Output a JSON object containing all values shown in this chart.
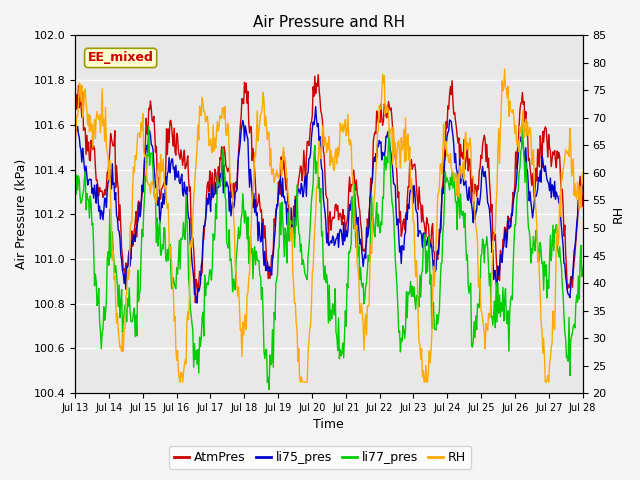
{
  "title": "Air Pressure and RH",
  "xlabel": "Time",
  "ylabel_left": "Air Pressure (kPa)",
  "ylabel_right": "RH",
  "annotation": "EE_mixed",
  "ylim_left": [
    100.4,
    102.0
  ],
  "ylim_right": [
    20,
    85
  ],
  "yticks_left": [
    100.4,
    100.6,
    100.8,
    101.0,
    101.2,
    101.4,
    101.6,
    101.8,
    102.0
  ],
  "yticks_right": [
    20,
    25,
    30,
    35,
    40,
    45,
    50,
    55,
    60,
    65,
    70,
    75,
    80,
    85
  ],
  "xtick_labels": [
    "Jul 13",
    "Jul 14",
    "Jul 15",
    "Jul 16",
    "Jul 17",
    "Jul 18",
    "Jul 19",
    "Jul 20",
    "Jul 21",
    "Jul 22",
    "Jul 23",
    "Jul 24",
    "Jul 25",
    "Jul 26",
    "Jul 27",
    "Jul 28"
  ],
  "colors": {
    "AtmPres": "#cc0000",
    "li75_pres": "#0000cc",
    "li77_pres": "#00cc00",
    "RH": "#ffaa00"
  },
  "bg_color": "#e8e8e8",
  "grid_color": "#ffffff",
  "fig_bg": "#f5f5f5",
  "linewidth": 1.0,
  "seed": 12,
  "n_points": 600
}
